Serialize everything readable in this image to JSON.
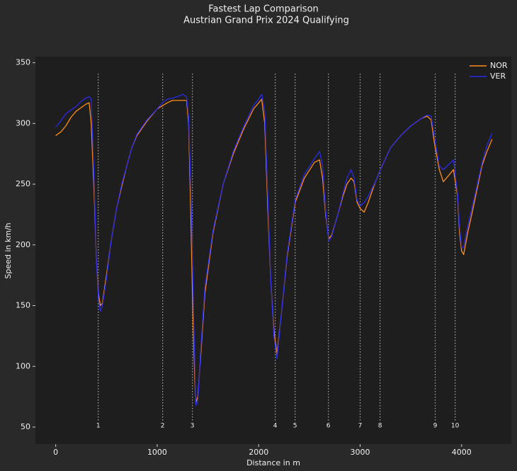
{
  "chart_data": {
    "type": "line",
    "title": "Fastest Lap Comparison",
    "subtitle": "Austrian Grand Prix 2024 Qualifying",
    "x_label": "Distance in m",
    "y_label": "Speed in km/h",
    "xlim": [
      -200,
      4490
    ],
    "ylim": [
      36,
      355
    ],
    "xticks": [
      0,
      1000,
      2000,
      3000,
      4000
    ],
    "yticks": [
      50,
      100,
      150,
      200,
      250,
      300,
      350
    ],
    "grid": false,
    "legend": "upper right",
    "series": [
      {
        "name": "NOR",
        "color": "#ff8c1a",
        "x": [
          0,
          50,
          100,
          150,
          200,
          250,
          300,
          330,
          350,
          380,
          400,
          420,
          440,
          460,
          500,
          550,
          600,
          650,
          700,
          750,
          800,
          900,
          1000,
          1100,
          1150,
          1250,
          1290,
          1310,
          1330,
          1350,
          1370,
          1380,
          1400,
          1430,
          1470,
          1550,
          1650,
          1750,
          1850,
          1950,
          2000,
          2030,
          2060,
          2090,
          2120,
          2150,
          2180,
          2220,
          2280,
          2360,
          2450,
          2550,
          2600,
          2630,
          2660,
          2690,
          2720,
          2780,
          2830,
          2870,
          2910,
          2940,
          2970,
          3000,
          3040,
          3080,
          3150,
          3200,
          3300,
          3400,
          3500,
          3600,
          3660,
          3700,
          3730,
          3780,
          3820,
          3870,
          3920,
          3960,
          3980,
          4000,
          4020,
          4060,
          4100,
          4150,
          4200,
          4250,
          4300
        ],
        "values": [
          290,
          293,
          298,
          305,
          310,
          313,
          316,
          317,
          300,
          240,
          190,
          160,
          150,
          152,
          175,
          205,
          230,
          248,
          265,
          280,
          290,
          302,
          312,
          317,
          319,
          319,
          319,
          300,
          230,
          150,
          90,
          70,
          75,
          110,
          160,
          210,
          250,
          275,
          295,
          312,
          317,
          320,
          300,
          230,
          170,
          130,
          110,
          140,
          190,
          235,
          255,
          268,
          270,
          255,
          225,
          205,
          208,
          225,
          240,
          250,
          255,
          252,
          235,
          230,
          227,
          235,
          252,
          262,
          280,
          290,
          298,
          304,
          306,
          303,
          285,
          262,
          252,
          257,
          262,
          240,
          210,
          195,
          192,
          210,
          225,
          245,
          265,
          277,
          287
        ]
      },
      {
        "name": "VER",
        "color": "#2a2ae8",
        "x": [
          0,
          50,
          100,
          200,
          250,
          300,
          330,
          350,
          380,
          400,
          420,
          440,
          460,
          500,
          550,
          600,
          650,
          700,
          750,
          800,
          900,
          1000,
          1050,
          1100,
          1200,
          1250,
          1290,
          1310,
          1340,
          1360,
          1380,
          1400,
          1430,
          1470,
          1550,
          1650,
          1750,
          1850,
          1950,
          2000,
          2030,
          2060,
          2090,
          2120,
          2150,
          2180,
          2220,
          2280,
          2360,
          2450,
          2550,
          2600,
          2630,
          2660,
          2690,
          2720,
          2780,
          2830,
          2870,
          2910,
          2940,
          2970,
          3000,
          3040,
          3080,
          3150,
          3200,
          3300,
          3400,
          3500,
          3600,
          3660,
          3700,
          3730,
          3780,
          3820,
          3870,
          3920,
          3960,
          3980,
          4000,
          4020,
          4060,
          4100,
          4150,
          4200,
          4250,
          4300
        ],
        "values": [
          297,
          302,
          308,
          314,
          318,
          321,
          322,
          320,
          250,
          190,
          155,
          145,
          150,
          172,
          205,
          230,
          250,
          265,
          280,
          291,
          303,
          312,
          317,
          320,
          322,
          324,
          322,
          305,
          220,
          140,
          68,
          70,
          115,
          165,
          212,
          250,
          277,
          297,
          315,
          320,
          324,
          310,
          240,
          170,
          125,
          106,
          140,
          192,
          237,
          258,
          271,
          277,
          265,
          228,
          203,
          207,
          225,
          242,
          255,
          262,
          255,
          237,
          232,
          235,
          240,
          252,
          262,
          280,
          290,
          298,
          304,
          307,
          306,
          290,
          265,
          262,
          266,
          270,
          242,
          215,
          198,
          198,
          215,
          230,
          248,
          267,
          282,
          292
        ]
      }
    ],
    "corners": {
      "numbers": [
        1,
        2,
        3,
        4,
        5,
        6,
        7,
        8,
        9,
        10
      ],
      "distances": [
        419,
        1054,
        1347,
        2163,
        2359,
        2687,
        3000,
        3196,
        3740,
        3936
      ]
    }
  }
}
